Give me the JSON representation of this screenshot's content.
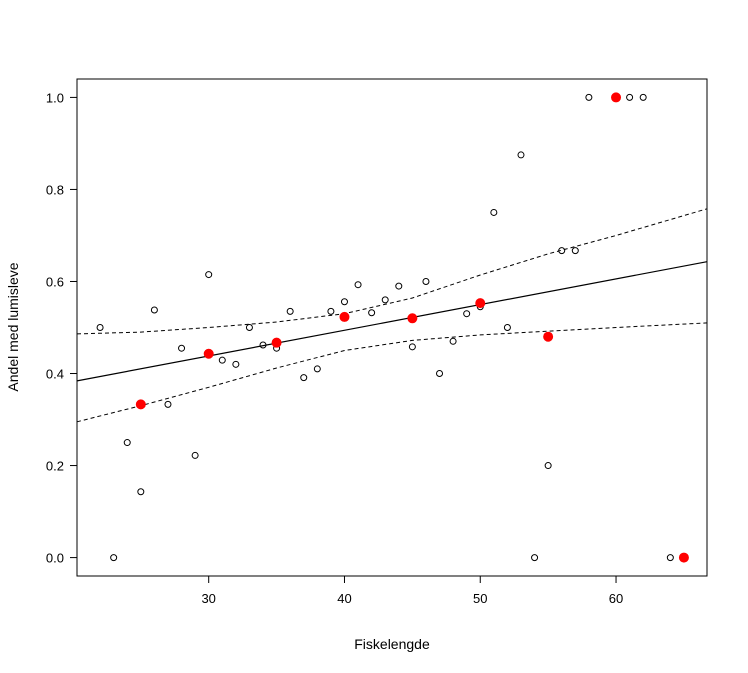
{
  "chart_data": {
    "type": "scatter",
    "title": "",
    "xlabel": "Fiskelengde",
    "ylabel": "Andel med lumisleve",
    "xlim": [
      20.3,
      66.7
    ],
    "ylim": [
      -0.04,
      1.04
    ],
    "x_ticks": [
      30,
      40,
      50,
      60
    ],
    "y_ticks": [
      0.0,
      0.2,
      0.4,
      0.6,
      0.8,
      1.0
    ],
    "x_tick_labels": [
      "30",
      "40",
      "50",
      "60"
    ],
    "y_tick_labels": [
      "0.0",
      "0.2",
      "0.4",
      "0.6",
      "0.8",
      "1.0"
    ],
    "grid": false,
    "series": [
      {
        "marker": "open-circle",
        "color": "#000000",
        "points": [
          [
            22,
            0.5
          ],
          [
            23,
            0.0
          ],
          [
            24,
            0.25
          ],
          [
            25,
            0.143
          ],
          [
            26,
            0.538
          ],
          [
            27,
            0.333
          ],
          [
            28,
            0.455
          ],
          [
            29,
            0.222
          ],
          [
            30,
            0.615
          ],
          [
            31,
            0.429
          ],
          [
            32,
            0.42
          ],
          [
            33,
            0.5
          ],
          [
            34,
            0.462
          ],
          [
            35,
            0.455
          ],
          [
            36,
            0.535
          ],
          [
            37,
            0.391
          ],
          [
            38,
            0.41
          ],
          [
            39,
            0.535
          ],
          [
            40,
            0.556
          ],
          [
            41,
            0.593
          ],
          [
            42,
            0.532
          ],
          [
            43,
            0.56
          ],
          [
            44,
            0.59
          ],
          [
            45,
            0.458
          ],
          [
            46,
            0.6
          ],
          [
            47,
            0.4
          ],
          [
            48,
            0.47
          ],
          [
            49,
            0.53
          ],
          [
            50,
            0.545
          ],
          [
            51,
            0.75
          ],
          [
            52,
            0.5
          ],
          [
            53,
            0.875
          ],
          [
            54,
            0.0
          ],
          [
            55,
            0.2
          ],
          [
            56,
            0.667
          ],
          [
            57,
            0.667
          ],
          [
            58,
            1.0
          ],
          [
            60,
            1.0
          ],
          [
            61,
            1.0
          ],
          [
            62,
            1.0
          ],
          [
            64,
            0.0
          ]
        ]
      },
      {
        "marker": "filled-circle",
        "color": "#ff0000",
        "points": [
          [
            25,
            0.333
          ],
          [
            30,
            0.443
          ],
          [
            35,
            0.467
          ],
          [
            40,
            0.523
          ],
          [
            45,
            0.52
          ],
          [
            50,
            0.553
          ],
          [
            55,
            0.48
          ],
          [
            60,
            1.0
          ],
          [
            65,
            0.0
          ]
        ]
      }
    ],
    "fit_line": {
      "style": "solid",
      "color": "#000000",
      "x": [
        20.3,
        66.7
      ],
      "y": [
        0.384,
        0.643
      ]
    },
    "confidence_band": {
      "style": "dashed",
      "color": "#000000",
      "x": [
        20.3,
        25,
        30,
        35,
        40,
        45,
        50,
        55,
        60,
        66.7
      ],
      "upper": [
        0.486,
        0.49,
        0.5,
        0.512,
        0.53,
        0.564,
        0.614,
        0.66,
        0.7,
        0.758
      ],
      "lower": [
        0.295,
        0.33,
        0.37,
        0.412,
        0.45,
        0.472,
        0.484,
        0.492,
        0.5,
        0.51
      ]
    }
  }
}
